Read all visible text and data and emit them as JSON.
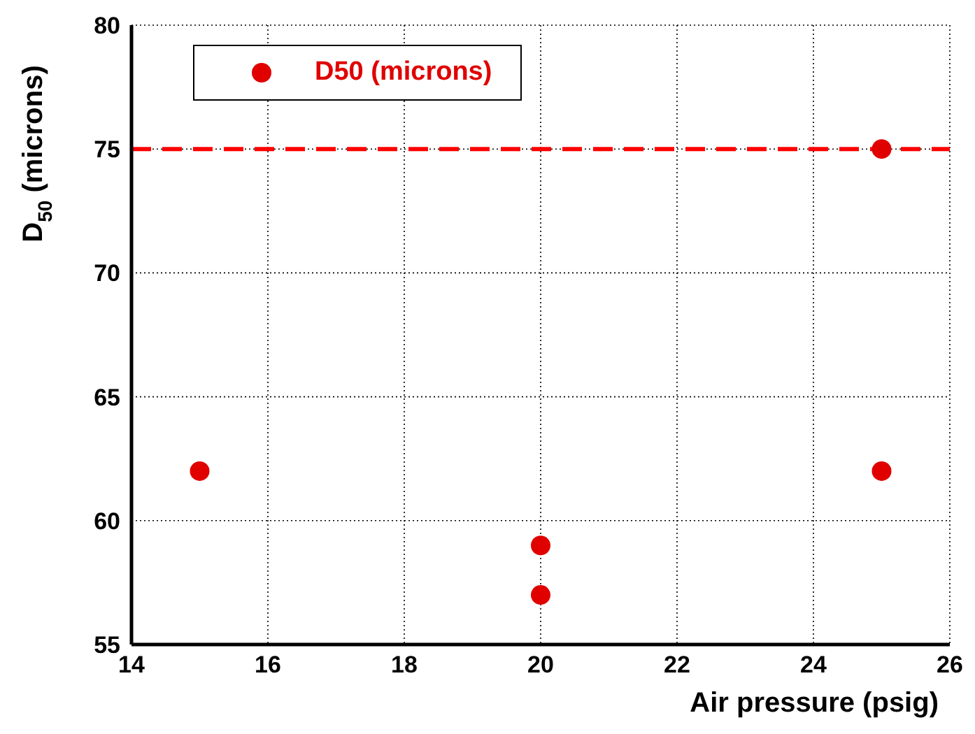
{
  "chart_data": {
    "type": "scatter",
    "xlabel": "Air pressure (psig)",
    "ylabel": "D$_{50}$ (microns)",
    "x": [
      15,
      20,
      20,
      25,
      25
    ],
    "series": [
      {
        "name": "D50 (microns)",
        "color": "#e00000",
        "values": [
          62,
          59,
          57,
          75,
          62
        ]
      }
    ],
    "xlim": [
      14,
      26
    ],
    "xticks": [
      14,
      16,
      18,
      20,
      22,
      24,
      26
    ],
    "ylim": [
      55,
      80
    ],
    "yticks": [
      55,
      60,
      65,
      70,
      75,
      80
    ],
    "ref_lines": [
      {
        "axis": "y",
        "value": 75,
        "color": "#ff0000",
        "line_style": "dashed"
      }
    ],
    "grid": true,
    "legend": "top left",
    "marker": "circle"
  }
}
